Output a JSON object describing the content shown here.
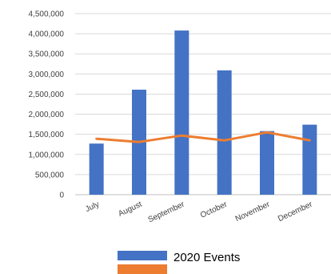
{
  "chart_data": {
    "type": "bar",
    "categories": [
      "July",
      "August",
      "September",
      "October",
      "November",
      "December"
    ],
    "series": [
      {
        "name": "2020 Events",
        "type": "bar",
        "color": "#4472C4",
        "values": [
          1270000,
          2610000,
          4080000,
          3090000,
          1580000,
          1740000
        ]
      },
      {
        "type": "line",
        "color": "#ED7D31",
        "values": [
          1390000,
          1310000,
          1470000,
          1350000,
          1550000,
          1350000
        ]
      }
    ],
    "ylim": [
      0,
      4500000
    ],
    "y_ticks": [
      "0",
      "500,000",
      "1,000,000",
      "1,500,000",
      "2,000,000",
      "2,500,000",
      "3,000,000",
      "3,500,000",
      "4,000,000",
      "4,500,000"
    ],
    "grid": true,
    "legend": "bottom",
    "legend_entries": [
      {
        "label": "2020 Events",
        "color": "#4472C4"
      },
      {
        "label": "",
        "color": "#ED7D31"
      }
    ]
  }
}
